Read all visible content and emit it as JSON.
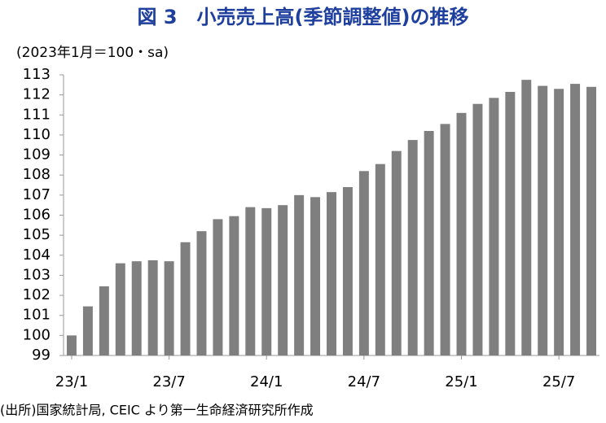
{
  "chart_data": {
    "type": "bar",
    "title": "図 3　小売売上高(季節調整値)の推移",
    "y_axis_label": "(2023年1月＝100・sa)",
    "source": "(出所)国家統計局, CEIC より第一生命経済研究所作成",
    "categories": [
      "23/1",
      null,
      null,
      null,
      null,
      null,
      "23/7",
      null,
      null,
      null,
      null,
      null,
      "24/1",
      null,
      null,
      null,
      null,
      null,
      "24/7",
      null,
      null,
      null,
      null,
      null,
      "25/1",
      null,
      null,
      null,
      null,
      null,
      "25/7",
      null,
      null
    ],
    "values": [
      100.0,
      101.45,
      102.45,
      103.6,
      103.7,
      103.75,
      103.7,
      104.65,
      105.2,
      105.8,
      105.95,
      106.4,
      106.35,
      106.5,
      107.0,
      106.9,
      107.15,
      107.4,
      108.2,
      108.55,
      109.2,
      109.75,
      110.2,
      110.55,
      111.1,
      111.55,
      111.85,
      112.15,
      112.75,
      112.45,
      112.3,
      112.55,
      112.4
    ],
    "color": "#7f7f7f",
    "title_color": "#1f3f9f",
    "ylim": [
      99,
      113
    ],
    "yticks": [
      99,
      100,
      101,
      102,
      103,
      104,
      105,
      106,
      107,
      108,
      109,
      110,
      111,
      112,
      113
    ],
    "grid": false
  }
}
